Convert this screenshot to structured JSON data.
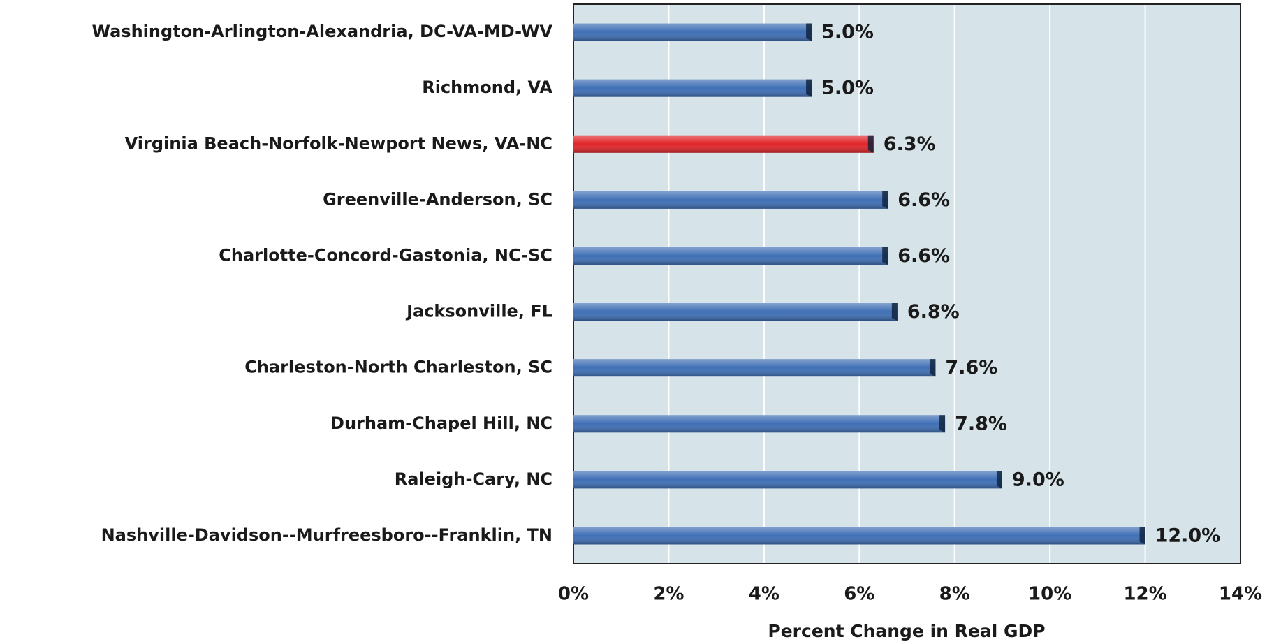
{
  "chart_data": {
    "type": "bar",
    "orientation": "horizontal",
    "x_label": "Percent Change in Real GDP",
    "categories": [
      "Washington-Arlington-Alexandria, DC-VA-MD-WV",
      "Richmond, VA",
      "Virginia Beach-Norfolk-Newport News, VA-NC",
      "Greenville-Anderson, SC",
      "Charlotte-Concord-Gastonia, NC-SC",
      "Jacksonville, FL",
      "Charleston-North Charleston, SC",
      "Durham-Chapel Hill, NC",
      "Raleigh-Cary, NC",
      "Nashville-Davidson--Murfreesboro--Franklin, TN"
    ],
    "values": [
      5.0,
      5.0,
      6.3,
      6.6,
      6.6,
      6.8,
      7.6,
      7.8,
      9.0,
      12.0
    ],
    "value_labels": [
      "5.0%",
      "5.0%",
      "6.3%",
      "6.6%",
      "6.6%",
      "6.8%",
      "7.6%",
      "7.8%",
      "9.0%",
      "12.0%"
    ],
    "colors": [
      "#3f6fb5",
      "#3f6fb5",
      "#e0262a",
      "#3f6fb5",
      "#3f6fb5",
      "#3f6fb5",
      "#3f6fb5",
      "#3f6fb5",
      "#3f6fb5",
      "#3f6fb5"
    ],
    "xlim": [
      0,
      14
    ],
    "xticks": [
      {
        "value": 0,
        "label": "0%"
      },
      {
        "value": 2,
        "label": "2%"
      },
      {
        "value": 4,
        "label": "4%"
      },
      {
        "value": 6,
        "label": "6%"
      },
      {
        "value": 8,
        "label": "8%"
      },
      {
        "value": 10,
        "label": "10%"
      },
      {
        "value": 12,
        "label": "12%"
      },
      {
        "value": 14,
        "label": "14%"
      }
    ],
    "grid": true
  }
}
